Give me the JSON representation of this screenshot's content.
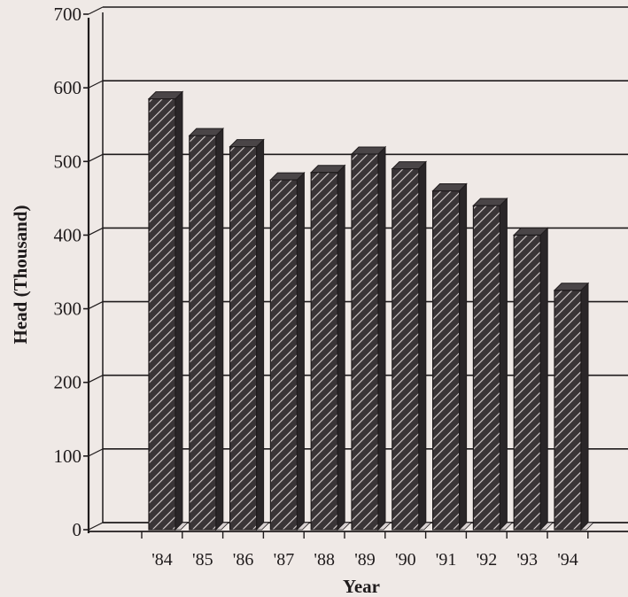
{
  "chart_data": {
    "type": "bar",
    "title": "",
    "xlabel": "Year",
    "ylabel": "Head (Thousand)",
    "categories": [
      "'84",
      "'85",
      "'86",
      "'87",
      "'88",
      "'89",
      "'90",
      "'91",
      "'92",
      "'93",
      "'94"
    ],
    "values": [
      585,
      535,
      520,
      475,
      485,
      510,
      490,
      460,
      440,
      400,
      325
    ],
    "ylim": [
      0,
      700
    ],
    "yticks": [
      0,
      100,
      200,
      300,
      400,
      500,
      600,
      700
    ],
    "grid": true,
    "colors": {
      "bar": "#3a3537",
      "hatch": "#d9d2d2",
      "ink": "#1f1b1c",
      "background": "#efe9e6"
    }
  }
}
